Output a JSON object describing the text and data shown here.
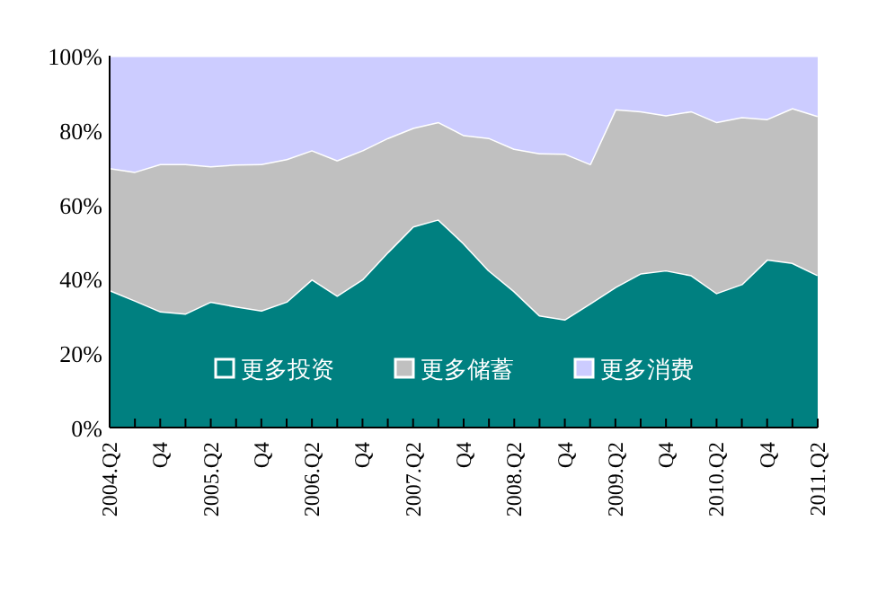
{
  "chart_data": {
    "type": "area",
    "stacked": true,
    "legend": "bottom",
    "ylim": [
      0,
      100
    ],
    "yticks": [
      {
        "value": 0,
        "label": "0%"
      },
      {
        "value": 20,
        "label": "20%"
      },
      {
        "value": 40,
        "label": "40%"
      },
      {
        "value": 60,
        "label": "60%"
      },
      {
        "value": 80,
        "label": "80%"
      },
      {
        "value": 100,
        "label": "100%"
      }
    ],
    "categories": [
      "2004.Q2",
      null,
      "Q4",
      null,
      "2005.Q2",
      null,
      "Q4",
      null,
      "2006.Q2",
      null,
      "Q4",
      null,
      "2007.Q2",
      null,
      "Q4",
      null,
      "2008.Q2",
      null,
      "Q4",
      null,
      "2009.Q2",
      null,
      "Q4",
      null,
      "2010.Q2",
      null,
      "Q4",
      null,
      "2011.Q2"
    ],
    "series": [
      {
        "name": "更多投资",
        "color": "#008080",
        "values": [
          37.0,
          34.2,
          31.3,
          30.7,
          33.9,
          32.6,
          31.5,
          33.9,
          39.9,
          35.5,
          39.9,
          47.2,
          54.1,
          56.0,
          49.6,
          42.3,
          36.7,
          30.2,
          29.1,
          33.4,
          37.8,
          41.5,
          42.3,
          41.0,
          36.2,
          38.6,
          45.2,
          44.3,
          41.0
        ]
      },
      {
        "name": "更多储蓄",
        "color": "#c0c0c0",
        "values": [
          32.8,
          34.6,
          39.6,
          40.2,
          36.4,
          38.2,
          39.4,
          38.3,
          34.7,
          36.4,
          34.7,
          30.7,
          26.5,
          26.2,
          29.1,
          35.6,
          38.3,
          43.6,
          44.6,
          37.5,
          47.8,
          43.6,
          41.7,
          44.1,
          46.0,
          44.9,
          37.8,
          41.6,
          42.8
        ]
      },
      {
        "name": "更多消费",
        "color": "#ccccff",
        "values": [
          30.2,
          31.2,
          29.1,
          29.1,
          29.7,
          29.2,
          29.1,
          27.8,
          25.4,
          28.1,
          25.4,
          22.1,
          19.4,
          17.8,
          21.3,
          22.1,
          25.0,
          26.2,
          26.3,
          29.1,
          14.4,
          14.9,
          16.0,
          14.9,
          17.8,
          16.5,
          17.0,
          14.1,
          16.2
        ]
      }
    ]
  }
}
